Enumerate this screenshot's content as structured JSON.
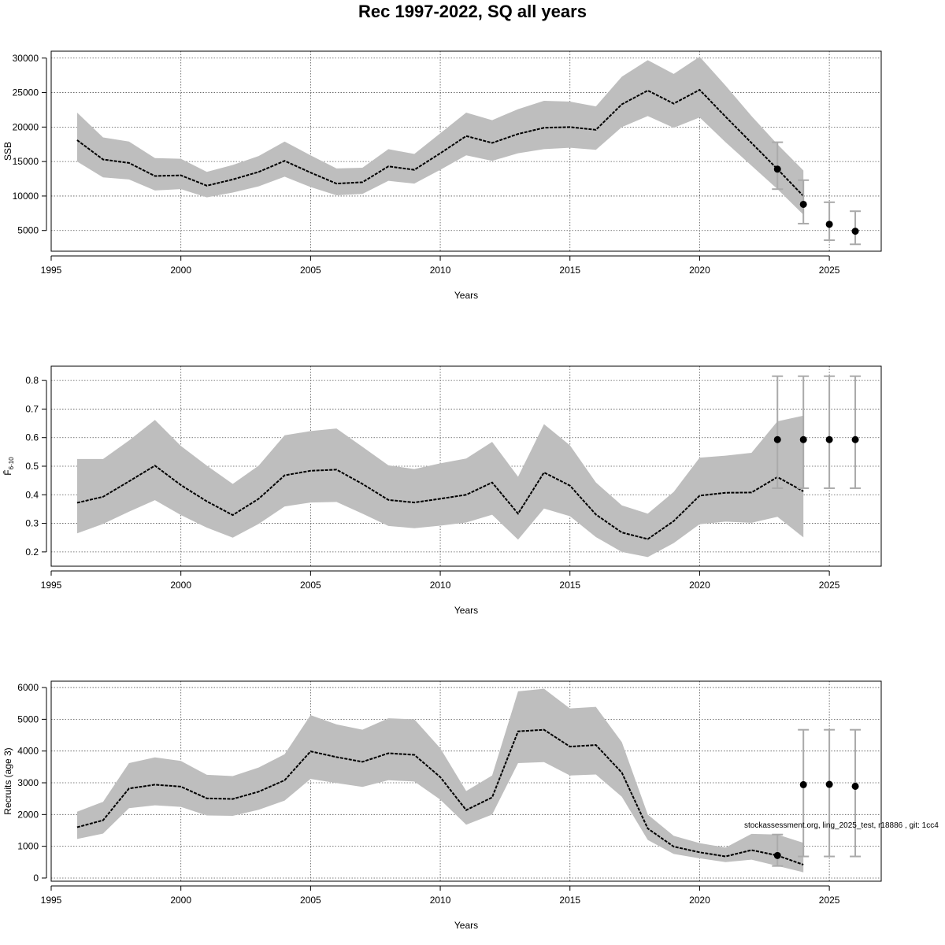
{
  "title": "Rec 1997-2022, SQ all years",
  "footnote": "stockassessment.org, ling_2025_test, r18886 , git: 1cc4",
  "chart_data": [
    {
      "type": "line",
      "ylabel": "SSB",
      "xlabel": "Years",
      "xlim": [
        1995,
        2027
      ],
      "ylim": [
        2000,
        31000
      ],
      "xticks": [
        1995,
        2000,
        2005,
        2010,
        2015,
        2020,
        2025
      ],
      "yticks": [
        5000,
        10000,
        15000,
        20000,
        25000,
        30000
      ],
      "grid": true,
      "band_color": "#bebebe",
      "series": [
        {
          "x": [
            1996,
            1997,
            1998,
            1999,
            2000,
            2001,
            2002,
            2003,
            2004,
            2005,
            2006,
            2007,
            2008,
            2009,
            2010,
            2011,
            2012,
            2013,
            2014,
            2015,
            2016,
            2017,
            2018,
            2019,
            2020,
            2021,
            2022,
            2023,
            2024
          ],
          "estimate": [
            18100,
            15300,
            14800,
            12900,
            13000,
            11500,
            12400,
            13500,
            15100,
            13400,
            11800,
            12000,
            14300,
            13800,
            16200,
            18700,
            17700,
            19000,
            19900,
            20000,
            19600,
            23300,
            25300,
            23400,
            25400,
            21500,
            17700,
            13900,
            10000
          ],
          "lower": [
            15000,
            12700,
            12400,
            10800,
            11000,
            9800,
            10500,
            11400,
            12800,
            11300,
            10100,
            10300,
            12200,
            11800,
            13800,
            15900,
            15100,
            16200,
            16800,
            17000,
            16700,
            20000,
            21600,
            19900,
            21400,
            17800,
            14400,
            11000,
            7300
          ],
          "upper": [
            22100,
            18500,
            17900,
            15500,
            15400,
            13500,
            14500,
            15800,
            17900,
            15900,
            14000,
            14100,
            16800,
            16100,
            19100,
            22100,
            21000,
            22600,
            23800,
            23700,
            23000,
            27300,
            29700,
            27700,
            30200,
            26000,
            21600,
            17500,
            13700
          ]
        }
      ],
      "forecast": {
        "x": [
          2023,
          2024,
          2025,
          2026
        ],
        "median": [
          13900,
          8800,
          5900,
          4900
        ],
        "lower": [
          11000,
          6000,
          3600,
          3000
        ],
        "upper": [
          17800,
          12300,
          9100,
          7800
        ]
      }
    },
    {
      "type": "line",
      "ylabel": "F̄6-10",
      "ylabel_main": "F̄",
      "ylabel_sub": "6-10",
      "xlabel": "Years",
      "xlim": [
        1995,
        2027
      ],
      "ylim": [
        0.15,
        0.85
      ],
      "xticks": [
        1995,
        2000,
        2005,
        2010,
        2015,
        2020,
        2025
      ],
      "yticks": [
        0.2,
        0.3,
        0.4,
        0.5,
        0.6,
        0.7,
        0.8
      ],
      "grid": true,
      "band_color": "#bebebe",
      "series": [
        {
          "x": [
            1996,
            1997,
            1998,
            1999,
            2000,
            2001,
            2002,
            2003,
            2004,
            2005,
            2006,
            2007,
            2008,
            2009,
            2010,
            2011,
            2012,
            2013,
            2014,
            2015,
            2016,
            2017,
            2018,
            2019,
            2020,
            2021,
            2022,
            2023,
            2024
          ],
          "estimate": [
            0.372,
            0.393,
            0.447,
            0.502,
            0.434,
            0.377,
            0.329,
            0.386,
            0.468,
            0.484,
            0.488,
            0.438,
            0.382,
            0.373,
            0.386,
            0.4,
            0.443,
            0.334,
            0.478,
            0.432,
            0.331,
            0.268,
            0.245,
            0.308,
            0.397,
            0.407,
            0.408,
            0.462,
            0.412
          ],
          "lower": [
            0.265,
            0.298,
            0.341,
            0.381,
            0.329,
            0.285,
            0.25,
            0.298,
            0.359,
            0.373,
            0.375,
            0.334,
            0.291,
            0.283,
            0.292,
            0.303,
            0.33,
            0.243,
            0.352,
            0.325,
            0.252,
            0.2,
            0.182,
            0.231,
            0.297,
            0.306,
            0.302,
            0.323,
            0.251
          ],
          "upper": [
            0.525,
            0.525,
            0.59,
            0.662,
            0.571,
            0.502,
            0.438,
            0.502,
            0.608,
            0.623,
            0.632,
            0.568,
            0.503,
            0.49,
            0.51,
            0.527,
            0.585,
            0.463,
            0.647,
            0.573,
            0.443,
            0.363,
            0.334,
            0.41,
            0.53,
            0.537,
            0.547,
            0.657,
            0.677
          ]
        }
      ],
      "forecast": {
        "x": [
          2023,
          2024,
          2025,
          2026
        ],
        "median": [
          0.593,
          0.593,
          0.593,
          0.593
        ],
        "lower": [
          0.423,
          0.423,
          0.423,
          0.423
        ],
        "upper": [
          0.815,
          0.815,
          0.815,
          0.815
        ]
      }
    },
    {
      "type": "line",
      "ylabel": "Recruits (age 3)",
      "xlabel": "Years",
      "xlim": [
        1995,
        2027
      ],
      "ylim": [
        -100,
        6200
      ],
      "xticks": [
        1995,
        2000,
        2005,
        2010,
        2015,
        2020,
        2025
      ],
      "yticks": [
        0,
        1000,
        2000,
        3000,
        4000,
        5000,
        6000
      ],
      "grid": true,
      "band_color": "#bebebe",
      "series": [
        {
          "x": [
            1996,
            1997,
            1998,
            1999,
            2000,
            2001,
            2002,
            2003,
            2004,
            2005,
            2006,
            2007,
            2008,
            2009,
            2010,
            2011,
            2012,
            2013,
            2014,
            2015,
            2016,
            2017,
            2018,
            2019,
            2020,
            2021,
            2022,
            2023,
            2024
          ],
          "estimate": [
            1600,
            1820,
            2820,
            2940,
            2880,
            2510,
            2490,
            2720,
            3080,
            3990,
            3810,
            3660,
            3930,
            3880,
            3180,
            2140,
            2540,
            4620,
            4670,
            4140,
            4190,
            3320,
            1560,
            990,
            810,
            680,
            880,
            710,
            420
          ],
          "lower": [
            1230,
            1400,
            2200,
            2290,
            2240,
            1970,
            1960,
            2150,
            2440,
            3120,
            2990,
            2870,
            3080,
            3040,
            2470,
            1680,
            2000,
            3620,
            3650,
            3230,
            3260,
            2560,
            1200,
            760,
            620,
            500,
            580,
            380,
            180
          ],
          "upper": [
            2090,
            2400,
            3620,
            3800,
            3690,
            3250,
            3210,
            3480,
            3900,
            5130,
            4840,
            4670,
            5030,
            5000,
            4090,
            2740,
            3230,
            5880,
            5960,
            5340,
            5390,
            4280,
            2000,
            1330,
            1100,
            960,
            1390,
            1370,
            1110
          ]
        }
      ],
      "forecast": {
        "x": [
          2023,
          2024,
          2025,
          2026
        ],
        "median": [
          710,
          2940,
          2950,
          2890
        ],
        "lower": [
          380,
          680,
          680,
          680
        ],
        "upper": [
          1370,
          4670,
          4670,
          4670
        ]
      }
    }
  ]
}
